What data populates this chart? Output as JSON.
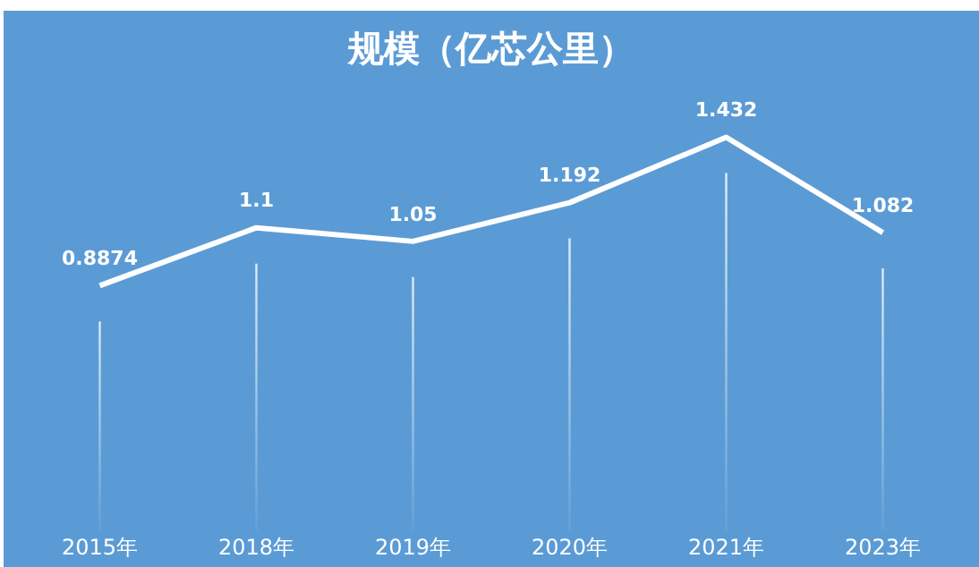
{
  "chart_data": {
    "type": "line",
    "title": "规模（亿芯公里）",
    "categories": [
      "2015年",
      "2018年",
      "2019年",
      "2020年",
      "2021年",
      "2023年"
    ],
    "series": [
      {
        "color": "#ffffff",
        "values": [
          0.8874,
          1.1,
          1.05,
          1.192,
          1.432,
          1.082
        ]
      }
    ],
    "data_labels": true,
    "grid": "x",
    "legend": false,
    "marker": "none",
    "line_style": "solid",
    "tick_labels": "x"
  }
}
